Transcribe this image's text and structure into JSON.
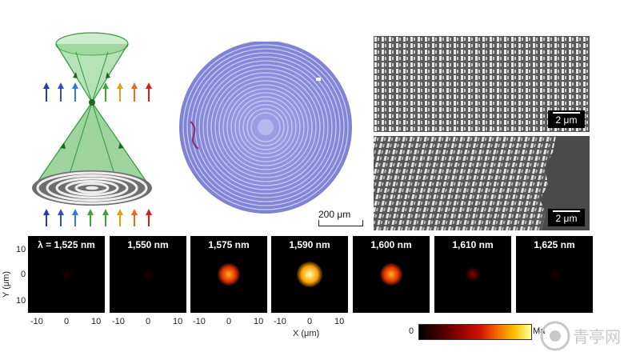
{
  "panels": [
    {
      "label": "λ = 1,525 nm",
      "intensity": 0.04
    },
    {
      "label": "1,550 nm",
      "intensity": 0.08
    },
    {
      "label": "1,575 nm",
      "intensity": 0.8
    },
    {
      "label": "1,590 nm",
      "intensity": 1.0
    },
    {
      "label": "1,600 nm",
      "intensity": 0.8
    },
    {
      "label": "1,610 nm",
      "intensity": 0.25
    },
    {
      "label": "1,625 nm",
      "intensity": 0.05
    }
  ],
  "axes": {
    "y_label": "Y (μm)",
    "x_label": "X (μm)",
    "y_ticks": [
      "10",
      "0",
      "10"
    ],
    "x_ticks": [
      "-10",
      "0",
      "10"
    ]
  },
  "colorbar": {
    "min_label": "0",
    "max_label": "Ma"
  },
  "scale_bars": {
    "micrograph": "200 μm",
    "sem_top": "2 μm",
    "sem_bottom": "2 μm"
  },
  "watermark": {
    "text": "青亭网"
  },
  "colors": {
    "cone_green": "#2e9a3a",
    "micrograph_purple": "#8d8fdc",
    "arrow_colors": [
      "#2a3aa8",
      "#3050c8",
      "#2b7de0",
      "#3aa53a",
      "#e0a020",
      "#e86a1a",
      "#d02020"
    ]
  }
}
